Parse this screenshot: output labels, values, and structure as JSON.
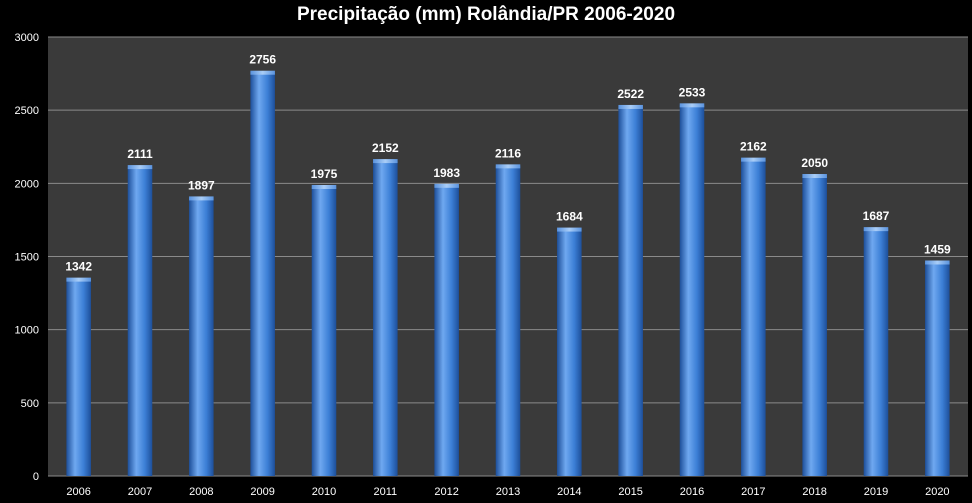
{
  "chart_data": {
    "type": "bar",
    "title": "Precipitação (mm) Rolândia/PR 2006-2020",
    "xlabel": "",
    "ylabel": "",
    "categories": [
      "2006",
      "2007",
      "2008",
      "2009",
      "2010",
      "2011",
      "2012",
      "2013",
      "2014",
      "2015",
      "2016",
      "2017",
      "2018",
      "2019",
      "2020"
    ],
    "values": [
      1342,
      2111,
      1897,
      2756,
      1975,
      2152,
      1983,
      2116,
      1684,
      2522,
      2533,
      2162,
      2050,
      1687,
      1459
    ],
    "data_labels": [
      "1342",
      "2111",
      "1897",
      "2756",
      "1975",
      "2152",
      "1983",
      "2116",
      "1684",
      "2522",
      "2533",
      "2162",
      "2050",
      "1687",
      "1459"
    ],
    "ylim": [
      0,
      3000
    ],
    "yticks": [
      "0",
      "500",
      "1000",
      "1500",
      "2000",
      "2500",
      "3000"
    ],
    "grid": true,
    "legend": "none",
    "colors": {
      "background": "#000000",
      "plot_area": "#3a3a3a",
      "gridline": "#8a8a8a",
      "bar_light": "#6fa8f0",
      "bar_mid": "#3c7fd6",
      "bar_dark": "#1d4f9a",
      "text": "#ffffff"
    }
  }
}
